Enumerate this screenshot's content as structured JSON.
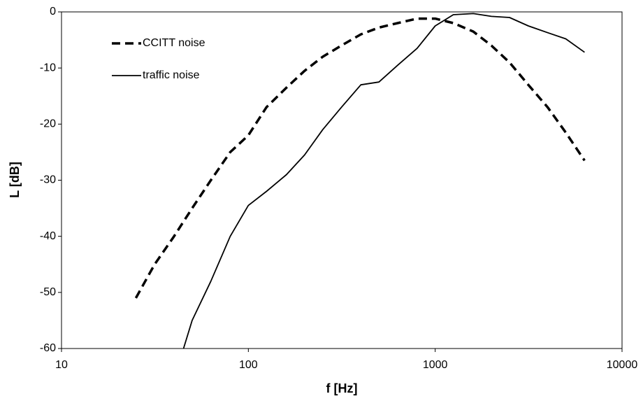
{
  "chart_data": {
    "type": "line",
    "x_label": "f [Hz]",
    "y_label": "L [dB]",
    "xscale": "log",
    "xlim": [
      10,
      10000
    ],
    "xticks": [
      10,
      100,
      1000,
      10000
    ],
    "ylim": [
      -60,
      0
    ],
    "yticks": [
      0,
      -10,
      -20,
      -30,
      -40,
      -50,
      -60
    ],
    "grid": false,
    "legend": "upper left",
    "series": [
      {
        "name": "CCITT noise",
        "color": "#000000",
        "linestyle": "dashed",
        "x": [
          25,
          31.5,
          40,
          50,
          63,
          80,
          100,
          125,
          160,
          200,
          250,
          315,
          400,
          500,
          630,
          800,
          1000,
          1250,
          1600,
          2000,
          2500,
          3150,
          4000,
          5000,
          6300
        ],
        "values": [
          -51,
          -45,
          -40,
          -35,
          -30,
          -25,
          -22,
          -17,
          -13.5,
          -10.5,
          -8,
          -6,
          -4,
          -2.8,
          -2,
          -1.2,
          -1.2,
          -2,
          -3.5,
          -6,
          -9,
          -13,
          -17,
          -21.5,
          -26.5
        ]
      },
      {
        "name": "traffic noise",
        "color": "#000000",
        "linestyle": "solid",
        "x": [
          45,
          50,
          63,
          80,
          100,
          125,
          160,
          200,
          250,
          315,
          400,
          500,
          630,
          800,
          1000,
          1250,
          1600,
          2000,
          2500,
          3150,
          4000,
          5000,
          6300
        ],
        "values": [
          -60,
          -55,
          -48,
          -40,
          -34.5,
          -32,
          -29,
          -25.5,
          -21,
          -17,
          -13,
          -12.5,
          -9.5,
          -6.5,
          -2.5,
          -0.5,
          -0.3,
          -0.8,
          -1,
          -2.5,
          -3.7,
          -4.8,
          -7.2
        ]
      }
    ]
  }
}
